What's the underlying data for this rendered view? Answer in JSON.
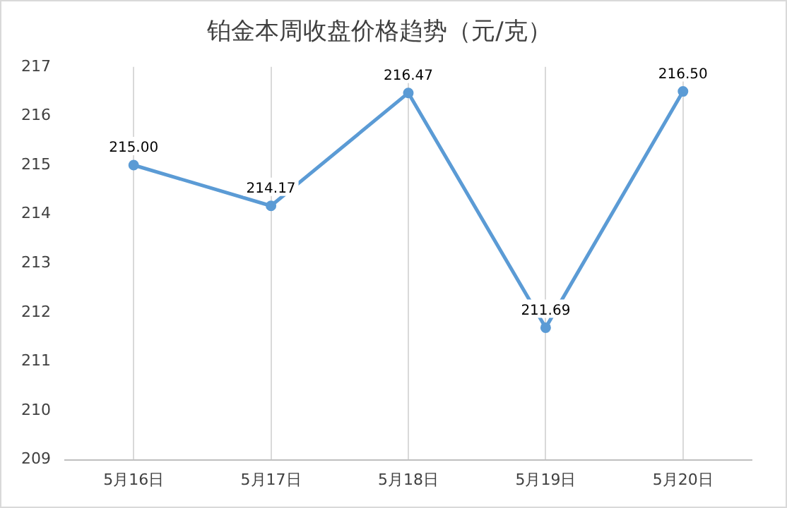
{
  "chart_data": {
    "type": "line",
    "title": "铂金本周收盘价格趋势（元/克）",
    "categories": [
      "5月16日",
      "5月17日",
      "5月18日",
      "5月19日",
      "5月20日"
    ],
    "series": [
      {
        "color": "#5b9bd5",
        "values": [
          215.0,
          214.17,
          216.47,
          211.69,
          216.5
        ],
        "value_labels": [
          "215.00",
          "214.17",
          "216.47",
          "211.69",
          "216.50"
        ]
      }
    ],
    "ylim": [
      209,
      217
    ],
    "yticks": [
      209,
      210,
      211,
      212,
      213,
      214,
      215,
      216,
      217
    ],
    "grid": "x",
    "legend": false,
    "marker": "circle",
    "line_style": "solid"
  }
}
